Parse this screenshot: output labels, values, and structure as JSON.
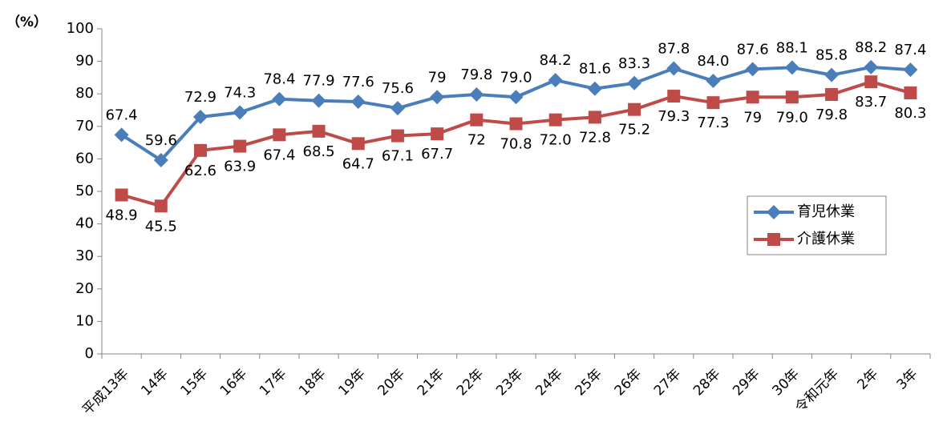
{
  "chart_data": {
    "type": "line",
    "y_label": "（%）",
    "categories": [
      "平成13年",
      "14年",
      "15年",
      "16年",
      "17年",
      "18年",
      "19年",
      "20年",
      "21年",
      "22年",
      "23年",
      "24年",
      "25年",
      "26年",
      "27年",
      "28年",
      "29年",
      "30年",
      "令和元年",
      "2年",
      "3年"
    ],
    "series": [
      {
        "name": "育児休業",
        "color": "#4a7ebb",
        "marker": "diamond",
        "values": [
          67.4,
          59.6,
          72.9,
          74.3,
          78.4,
          77.9,
          77.6,
          75.6,
          79,
          79.8,
          79.0,
          84.2,
          81.6,
          83.3,
          87.8,
          84.0,
          87.6,
          88.1,
          85.8,
          88.2,
          87.4
        ],
        "value_labels": [
          "67.4",
          "59.6",
          "72.9",
          "74.3",
          "78.4",
          "77.9",
          "77.6",
          "75.6",
          "79",
          "79.8",
          "79.0",
          "84.2",
          "81.6",
          "83.3",
          "87.8",
          "84.0",
          "87.6",
          "88.1",
          "85.8",
          "88.2",
          "87.4"
        ]
      },
      {
        "name": "介護休業",
        "color": "#be4b48",
        "marker": "square",
        "values": [
          48.9,
          45.5,
          62.6,
          63.9,
          67.4,
          68.5,
          64.7,
          67.1,
          67.7,
          72,
          70.8,
          72.0,
          72.8,
          75.2,
          79.3,
          77.3,
          79,
          79.0,
          79.8,
          83.7,
          80.3
        ],
        "value_labels": [
          "48.9",
          "45.5",
          "62.6",
          "63.9",
          "67.4",
          "68.5",
          "64.7",
          "67.1",
          "67.7",
          "72",
          "70.8",
          "72.0",
          "72.8",
          "75.2",
          "79.3",
          "77.3",
          "79",
          "79.0",
          "79.8",
          "83.7",
          "80.3"
        ]
      }
    ],
    "ylim": [
      0,
      100
    ],
    "yticks": [
      0,
      10,
      20,
      30,
      40,
      50,
      60,
      70,
      80,
      90,
      100
    ],
    "grid": false,
    "legend": "right"
  }
}
